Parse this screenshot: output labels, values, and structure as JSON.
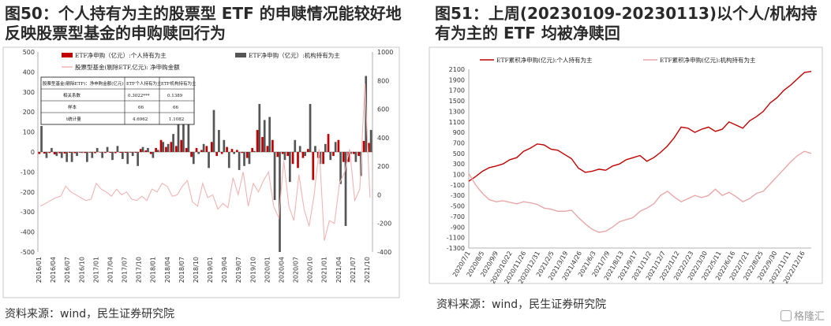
{
  "titles": {
    "left": "图50：个人持有为主的股票型 ETF 的申赎情况能较好地反映股票型基金的申购赎回行为",
    "right": "图51：上周(20230109-20230113)以个人/机构持有为主的 ETF 均被净赎回"
  },
  "sources": {
    "left": "资料来源：wind，民生证券研究院",
    "right": "资料来源：wind，民生证券研究院"
  },
  "watermark": "格隆汇",
  "colors": {
    "red": "#c00000",
    "gray": "#555555",
    "pink": "#f2b4b4",
    "lightred": "#e9a7a7"
  },
  "chart_data": [
    {
      "type": "bar",
      "legend": [
        "ETF净申购（亿元）:个人持有为主",
        "ETF净申购（亿元）:机构持有为主",
        "股票型基金(剔除ETF,亿元): 净申购金额"
      ],
      "yleft_ticks": [
        "500",
        "400",
        "300",
        "200",
        "100",
        "0",
        "-100",
        "-200",
        "-300",
        "-400",
        "-500"
      ],
      "yleft_lim": [
        -500,
        500
      ],
      "yright_ticks": [
        "1000",
        "800",
        "600",
        "400",
        "200",
        "0",
        "-200",
        "-400"
      ],
      "yright_lim": [
        -400,
        1000
      ],
      "x_ticks": [
        "2016/01",
        "2016/04",
        "2016/07",
        "2016/10",
        "2017/01",
        "2017/04",
        "2017/07",
        "2017/10",
        "2018/01",
        "2018/04",
        "2018/07",
        "2018/10",
        "2019/01",
        "2019/04",
        "2019/07",
        "2019/10",
        "2020/01",
        "2020/04",
        "2020/07",
        "2020/10",
        "2021/01",
        "2021/04",
        "2021/07",
        "2021/10"
      ],
      "table": {
        "header": [
          "股票型基金(剔除ETF)：净申购金额(亿元)",
          "ETF个人持有为主",
          "ETF机构持有为主"
        ],
        "rows": [
          [
            "相关系数",
            "0.3022***",
            "0.1389"
          ],
          [
            "样本",
            "66",
            "66"
          ],
          [
            "t统计量",
            "4.6962",
            "1.1082"
          ]
        ]
      },
      "series": [
        {
          "name": "ETF净申购（亿元）:个人持有为主",
          "values": [
            -10,
            -8,
            -5,
            -12,
            -6,
            -8,
            -4,
            -6,
            -3,
            -5,
            -3,
            -6,
            -2,
            -5,
            -4,
            -6,
            -4,
            -4,
            -3,
            -4,
            15,
            8,
            -10,
            20,
            60,
            25,
            50,
            30,
            60,
            20,
            -25,
            20,
            10,
            30,
            50,
            -20,
            -10,
            25,
            15,
            10,
            -5,
            -30,
            20,
            110,
            75,
            30,
            60,
            -25,
            -10,
            -20,
            -60,
            -80,
            -30,
            15,
            -140,
            -30,
            -60,
            90,
            -20,
            60,
            -50,
            -50,
            -10,
            -20,
            55,
            45
          ]
        },
        {
          "name": "ETF净申购（亿元）:机构持有为主",
          "values": [
            130,
            -30,
            20,
            -20,
            -30,
            -50,
            -50,
            -20,
            -5,
            -50,
            -30,
            20,
            -30,
            25,
            -40,
            30,
            -35,
            -60,
            -20,
            -70,
            25,
            20,
            -30,
            10,
            50,
            40,
            90,
            140,
            150,
            240,
            -60,
            -10,
            40,
            -80,
            210,
            110,
            60,
            -80,
            -10,
            -90,
            -70,
            -60,
            5,
            240,
            160,
            175,
            -240,
            -500,
            -40,
            -150,
            60,
            30,
            -20,
            240,
            30,
            -60,
            40,
            -40,
            50,
            -160,
            -370,
            -10,
            -50,
            -120,
            380,
            110
          ]
        },
        {
          "name": "股票型基金(剔除ETF,亿元): 净申购金额",
          "values": [
            -80,
            -60,
            -40,
            -20,
            -10,
            60,
            20,
            0,
            -20,
            -40,
            -30,
            80,
            40,
            20,
            -10,
            40,
            0,
            20,
            -30,
            -40,
            -10,
            -40,
            40,
            20,
            80,
            60,
            -10,
            0,
            60,
            100,
            -50,
            -80,
            80,
            -20,
            0,
            -100,
            -60,
            -90,
            120,
            0,
            160,
            -80,
            80,
            20,
            100,
            160,
            -80,
            -160,
            240,
            -80,
            -180,
            140,
            -100,
            -220,
            0,
            320,
            -320,
            -180,
            -200,
            80,
            160,
            320,
            -40,
            40,
            780,
            -20
          ]
        }
      ]
    },
    {
      "type": "line",
      "legend": [
        "ETF累积净申购(亿元):个人持有为主",
        "ETF累积净申购(亿元):机构持有为主"
      ],
      "y_ticks": [
        "2100",
        "1900",
        "1700",
        "1500",
        "1300",
        "1100",
        "900",
        "700",
        "500",
        "300",
        "100",
        "-100",
        "-300",
        "-500",
        "-700",
        "-900",
        "-1100",
        "-1300"
      ],
      "ylim": [
        -1300,
        2100
      ],
      "x_ticks": [
        "2020/7/1",
        "2020/8/5",
        "2020/9/9",
        "2020/10/22",
        "2020/11/26",
        "2020/12/31",
        "2021/2/5",
        "2021/3/19",
        "2021/4/26",
        "2021/6/3",
        "2021/7/9",
        "2021/8/13",
        "2021/9/17",
        "2021/11/2",
        "2021/12/7",
        "2022/1/12",
        "2022/2/23",
        "2022/3/30",
        "2022/5/11",
        "2022/6/16",
        "2022/7/21",
        "2022/8/25",
        "2022/9/30",
        "2022/11/11",
        "2022/12/16"
      ],
      "series": [
        {
          "name": "ETF累积净申购(亿元):个人持有为主",
          "x": [
            0,
            2,
            4,
            6,
            8,
            10,
            12,
            14,
            16,
            18,
            20,
            22,
            24,
            26,
            28,
            30,
            32,
            34,
            36,
            38,
            40,
            42,
            44,
            46,
            48,
            50,
            52,
            54,
            56,
            58,
            60,
            62,
            64,
            66,
            68,
            70,
            72,
            74,
            76,
            78,
            80,
            82,
            84,
            86,
            88,
            90,
            92,
            94,
            96,
            98,
            100
          ],
          "y": [
            -30,
            60,
            160,
            230,
            260,
            300,
            380,
            420,
            540,
            600,
            680,
            660,
            580,
            560,
            480,
            400,
            220,
            140,
            160,
            200,
            180,
            260,
            300,
            380,
            420,
            460,
            350,
            420,
            520,
            640,
            800,
            1000,
            980,
            900,
            960,
            1000,
            920,
            960,
            1100,
            1040,
            980,
            1120,
            1200,
            1300,
            1460,
            1560,
            1700,
            1800,
            1920,
            2040,
            2060
          ]
        },
        {
          "name": "ETF累积净申购(亿元):机构持有为主",
          "x": [
            0,
            2,
            4,
            6,
            8,
            10,
            12,
            14,
            16,
            18,
            20,
            22,
            24,
            26,
            28,
            30,
            32,
            34,
            36,
            38,
            40,
            42,
            44,
            46,
            48,
            50,
            52,
            54,
            56,
            58,
            60,
            62,
            64,
            66,
            68,
            70,
            72,
            74,
            76,
            78,
            80,
            82,
            84,
            86,
            88,
            90,
            92,
            94,
            96,
            98,
            100
          ],
          "y": [
            120,
            -100,
            -260,
            -380,
            -420,
            -400,
            -430,
            -460,
            -420,
            -440,
            -470,
            -540,
            -560,
            -600,
            -600,
            -580,
            -720,
            -840,
            -940,
            -1000,
            -980,
            -900,
            -800,
            -760,
            -720,
            -600,
            -540,
            -460,
            -300,
            -220,
            -330,
            -420,
            -360,
            -300,
            -340,
            -300,
            -180,
            -300,
            -240,
            -320,
            -420,
            -360,
            -260,
            -220,
            -80,
            60,
            200,
            340,
            460,
            540,
            500
          ]
        }
      ]
    }
  ]
}
